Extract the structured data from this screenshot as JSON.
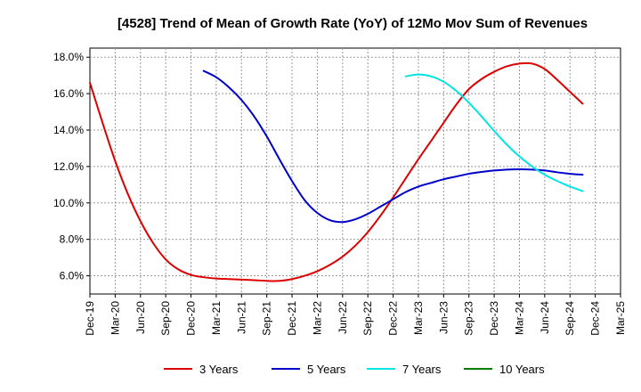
{
  "chart_data": {
    "type": "line",
    "title": "[4528]  Trend of Mean of Growth Rate (YoY) of 12Mo Mov Sum of Revenues",
    "xlabel": "",
    "ylabel": "",
    "x_ticks": [
      "Dec-19",
      "Mar-20",
      "Jun-20",
      "Sep-20",
      "Dec-20",
      "Mar-21",
      "Jun-21",
      "Sep-21",
      "Dec-21",
      "Mar-22",
      "Jun-22",
      "Sep-22",
      "Dec-22",
      "Mar-23",
      "Jun-23",
      "Sep-23",
      "Dec-23",
      "Mar-24",
      "Jun-24",
      "Sep-24",
      "Dec-24",
      "Mar-25"
    ],
    "y_ticks": [
      "6.0%",
      "8.0%",
      "10.0%",
      "12.0%",
      "14.0%",
      "16.0%",
      "18.0%"
    ],
    "y_tick_values": [
      6,
      8,
      10,
      12,
      14,
      16,
      18
    ],
    "ylim": [
      5.0,
      18.5
    ],
    "xlim": [
      0,
      21
    ],
    "grid": true,
    "legend_position": "bottom",
    "series": [
      {
        "name": "3 Years",
        "color": "#dd0000",
        "points": [
          [
            0,
            16.6
          ],
          [
            0.5,
            14.4
          ],
          [
            1,
            12.3
          ],
          [
            1.5,
            10.5
          ],
          [
            2,
            9.0
          ],
          [
            2.5,
            7.8
          ],
          [
            3,
            6.9
          ],
          [
            3.5,
            6.35
          ],
          [
            4,
            6.05
          ],
          [
            4.5,
            5.92
          ],
          [
            5,
            5.85
          ],
          [
            5.5,
            5.82
          ],
          [
            6,
            5.79
          ],
          [
            6.5,
            5.76
          ],
          [
            7,
            5.72
          ],
          [
            7.5,
            5.72
          ],
          [
            8,
            5.82
          ],
          [
            8.5,
            6.0
          ],
          [
            9,
            6.25
          ],
          [
            9.5,
            6.6
          ],
          [
            10,
            7.05
          ],
          [
            10.5,
            7.65
          ],
          [
            11,
            8.4
          ],
          [
            11.5,
            9.3
          ],
          [
            12,
            10.3
          ],
          [
            12.5,
            11.35
          ],
          [
            13,
            12.4
          ],
          [
            13.5,
            13.4
          ],
          [
            14,
            14.4
          ],
          [
            14.5,
            15.4
          ],
          [
            15,
            16.25
          ],
          [
            15.5,
            16.8
          ],
          [
            16,
            17.2
          ],
          [
            16.5,
            17.5
          ],
          [
            17,
            17.65
          ],
          [
            17.5,
            17.65
          ],
          [
            18,
            17.35
          ],
          [
            18.5,
            16.75
          ],
          [
            19,
            16.1
          ],
          [
            19.5,
            15.45
          ]
        ]
      },
      {
        "name": "5 Years",
        "color": "#0000cc",
        "points": [
          [
            4.5,
            17.25
          ],
          [
            5,
            16.9
          ],
          [
            5.5,
            16.35
          ],
          [
            6,
            15.65
          ],
          [
            6.5,
            14.75
          ],
          [
            7,
            13.65
          ],
          [
            7.5,
            12.4
          ],
          [
            8,
            11.2
          ],
          [
            8.5,
            10.15
          ],
          [
            9,
            9.45
          ],
          [
            9.5,
            9.05
          ],
          [
            10,
            8.95
          ],
          [
            10.5,
            9.1
          ],
          [
            11,
            9.4
          ],
          [
            11.5,
            9.8
          ],
          [
            12,
            10.2
          ],
          [
            12.5,
            10.6
          ],
          [
            13,
            10.9
          ],
          [
            13.5,
            11.1
          ],
          [
            14,
            11.3
          ],
          [
            14.5,
            11.45
          ],
          [
            15,
            11.6
          ],
          [
            15.5,
            11.7
          ],
          [
            16,
            11.78
          ],
          [
            16.5,
            11.83
          ],
          [
            17,
            11.85
          ],
          [
            17.5,
            11.83
          ],
          [
            18,
            11.78
          ],
          [
            18.5,
            11.68
          ],
          [
            19,
            11.6
          ],
          [
            19.5,
            11.55
          ]
        ]
      },
      {
        "name": "7 Years",
        "color": "#00e5e5",
        "points": [
          [
            12.5,
            16.95
          ],
          [
            13,
            17.05
          ],
          [
            13.5,
            16.95
          ],
          [
            14,
            16.65
          ],
          [
            14.5,
            16.15
          ],
          [
            15,
            15.5
          ],
          [
            15.5,
            14.75
          ],
          [
            16,
            13.95
          ],
          [
            16.5,
            13.2
          ],
          [
            17,
            12.55
          ],
          [
            17.5,
            12.0
          ],
          [
            18,
            11.55
          ],
          [
            18.5,
            11.2
          ],
          [
            19,
            10.9
          ],
          [
            19.5,
            10.65
          ]
        ]
      },
      {
        "name": "10 Years",
        "color": "#008000",
        "points": []
      }
    ]
  }
}
